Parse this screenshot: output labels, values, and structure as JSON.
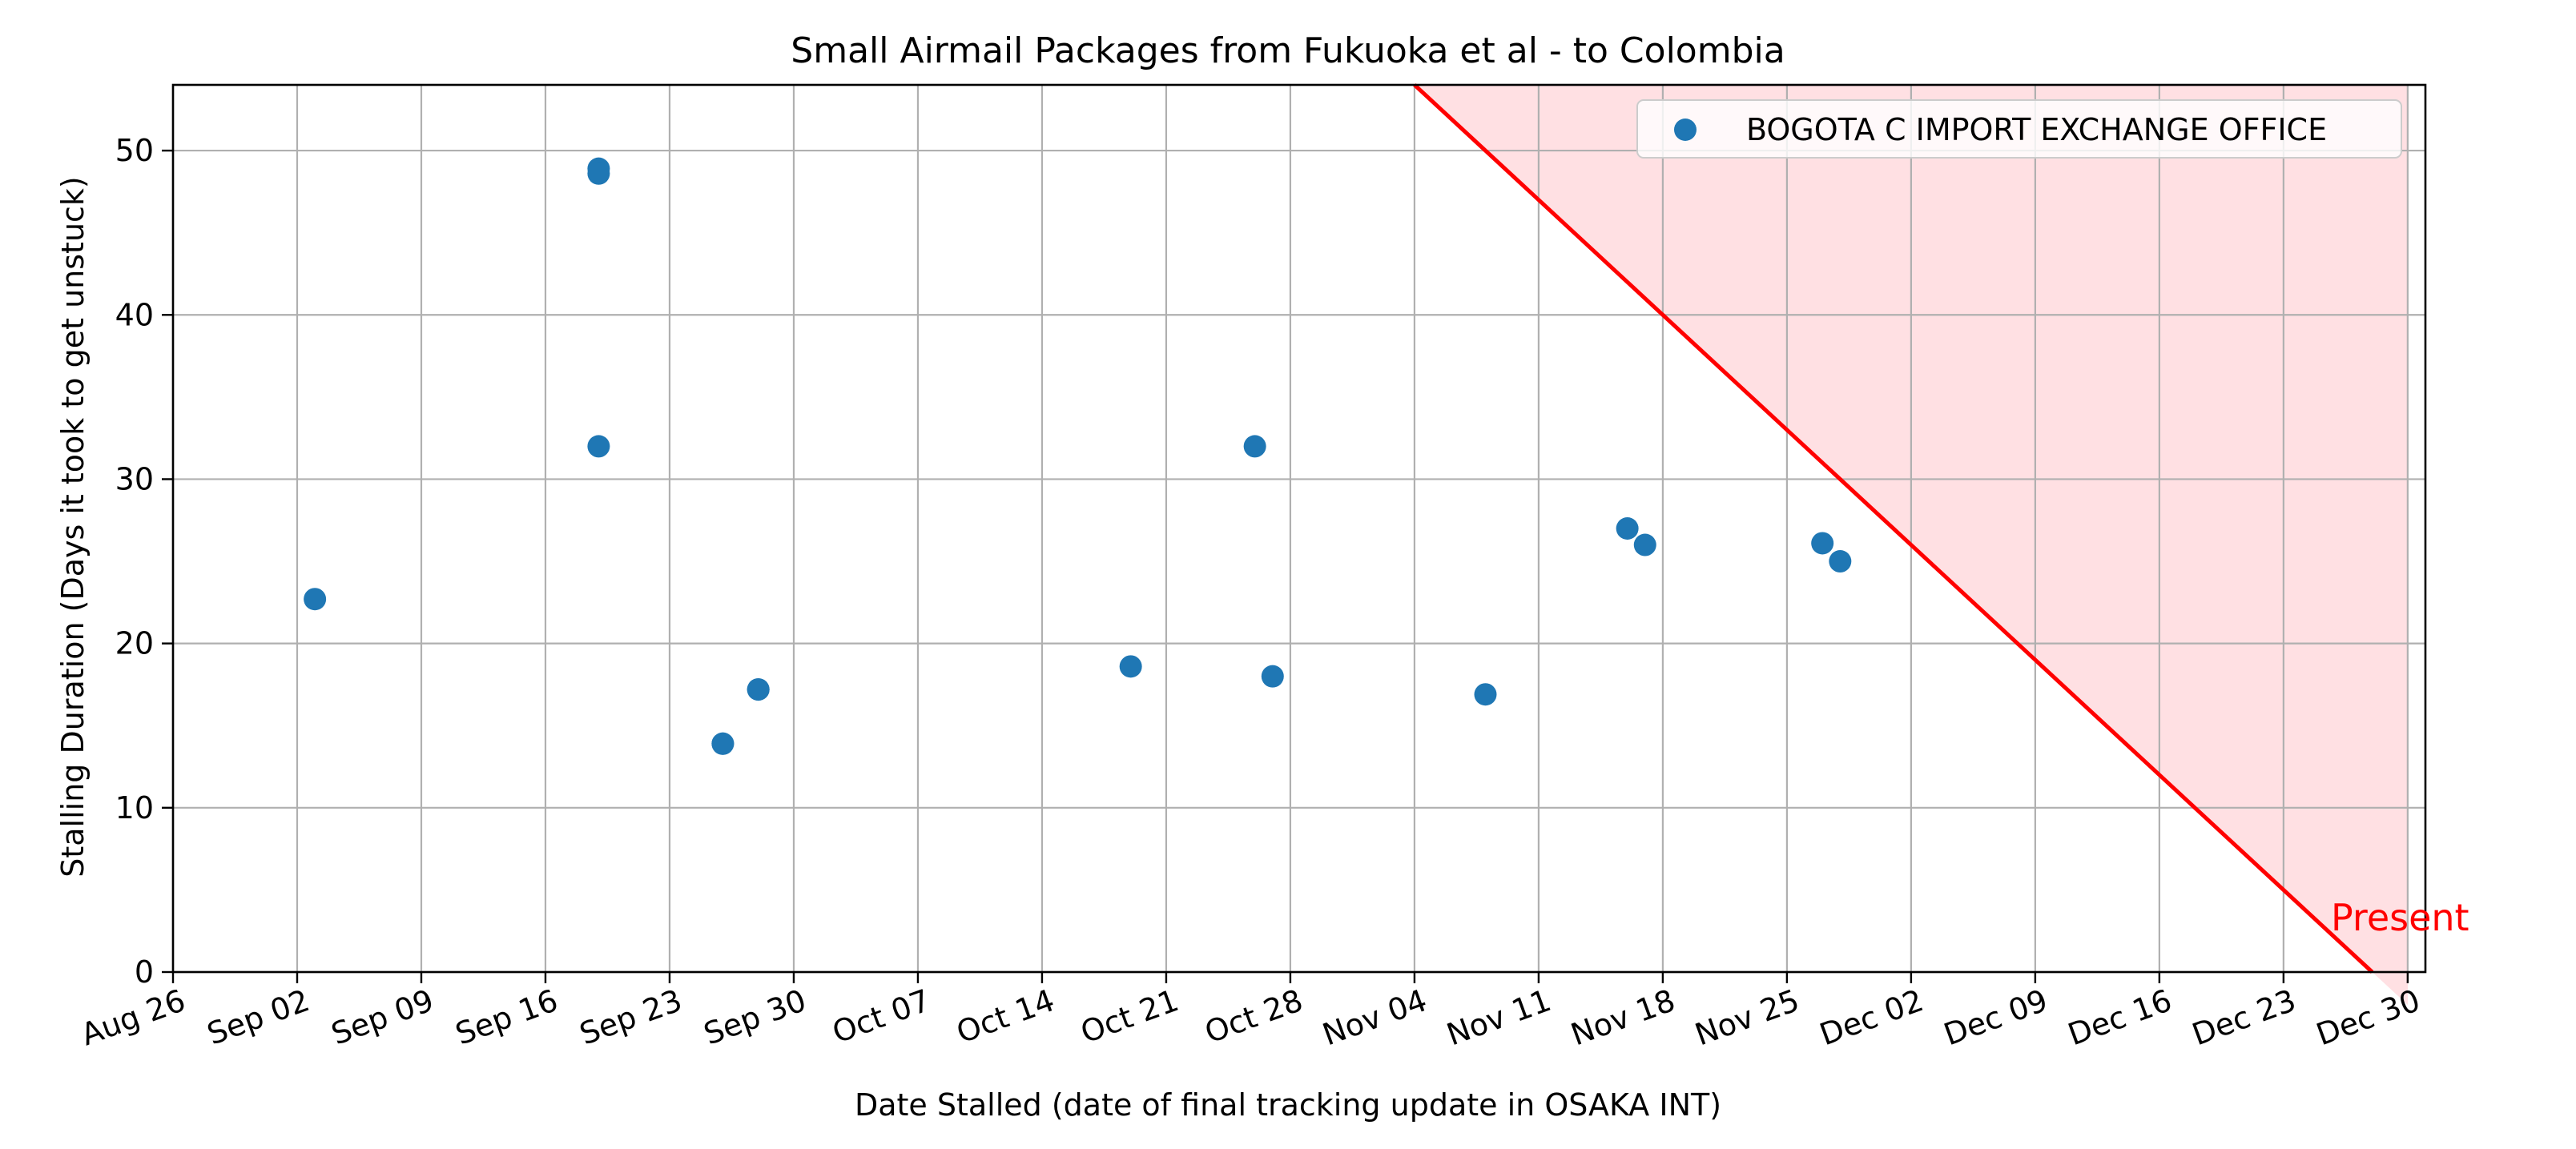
{
  "chart_data": {
    "type": "scatter",
    "title": "Small Airmail Packages from Fukuoka et al - to Colombia",
    "xlabel": "Date Stalled (date of final tracking update in OSAKA INT)",
    "ylabel": "Stalling Duration (Days it took to get unstuck)",
    "xlim": [
      "2023-08-26",
      "2023-12-31"
    ],
    "ylim": [
      0,
      54
    ],
    "x_ticks": [
      "Aug 26",
      "Sep 02",
      "Sep 09",
      "Sep 16",
      "Sep 23",
      "Sep 30",
      "Oct 07",
      "Oct 14",
      "Oct 21",
      "Oct 28",
      "Nov 04",
      "Nov 11",
      "Nov 18",
      "Nov 25",
      "Dec 02",
      "Dec 09",
      "Dec 16",
      "Dec 23",
      "Dec 30"
    ],
    "x_tick_dates": [
      "2023-08-26",
      "2023-09-02",
      "2023-09-09",
      "2023-09-16",
      "2023-09-23",
      "2023-09-30",
      "2023-10-07",
      "2023-10-14",
      "2023-10-21",
      "2023-10-28",
      "2023-11-04",
      "2023-11-11",
      "2023-11-18",
      "2023-11-25",
      "2023-12-02",
      "2023-12-09",
      "2023-12-16",
      "2023-12-23",
      "2023-12-30"
    ],
    "y_ticks": [
      0,
      10,
      20,
      30,
      40,
      50
    ],
    "grid": true,
    "legend_position": "top-right",
    "series": [
      {
        "name": "BOGOTA C IMPORT EXCHANGE OFFICE",
        "color": "#1f77b4",
        "points": [
          {
            "x": "2023-09-03",
            "y": 22.7
          },
          {
            "x": "2023-09-19",
            "y": 48.9
          },
          {
            "x": "2023-09-19",
            "y": 48.6
          },
          {
            "x": "2023-09-19",
            "y": 32
          },
          {
            "x": "2023-09-26",
            "y": 13.9
          },
          {
            "x": "2023-09-26",
            "y": 13.9
          },
          {
            "x": "2023-09-28",
            "y": 17.2
          },
          {
            "x": "2023-09-28",
            "y": 17.2
          },
          {
            "x": "2023-10-19",
            "y": 18.6
          },
          {
            "x": "2023-10-26",
            "y": 32
          },
          {
            "x": "2023-10-27",
            "y": 18
          },
          {
            "x": "2023-11-08",
            "y": 16.9
          },
          {
            "x": "2023-11-16",
            "y": 27
          },
          {
            "x": "2023-11-17",
            "y": 26
          },
          {
            "x": "2023-11-27",
            "y": 26.1
          },
          {
            "x": "2023-11-28",
            "y": 25
          }
        ]
      }
    ],
    "present_line": {
      "label": "Present",
      "color": "#ff0000",
      "fill_color": "#ffe0e3",
      "from": {
        "x": "2023-11-04",
        "y": 54
      },
      "to": {
        "x": "2023-12-28",
        "y": 0
      }
    }
  }
}
